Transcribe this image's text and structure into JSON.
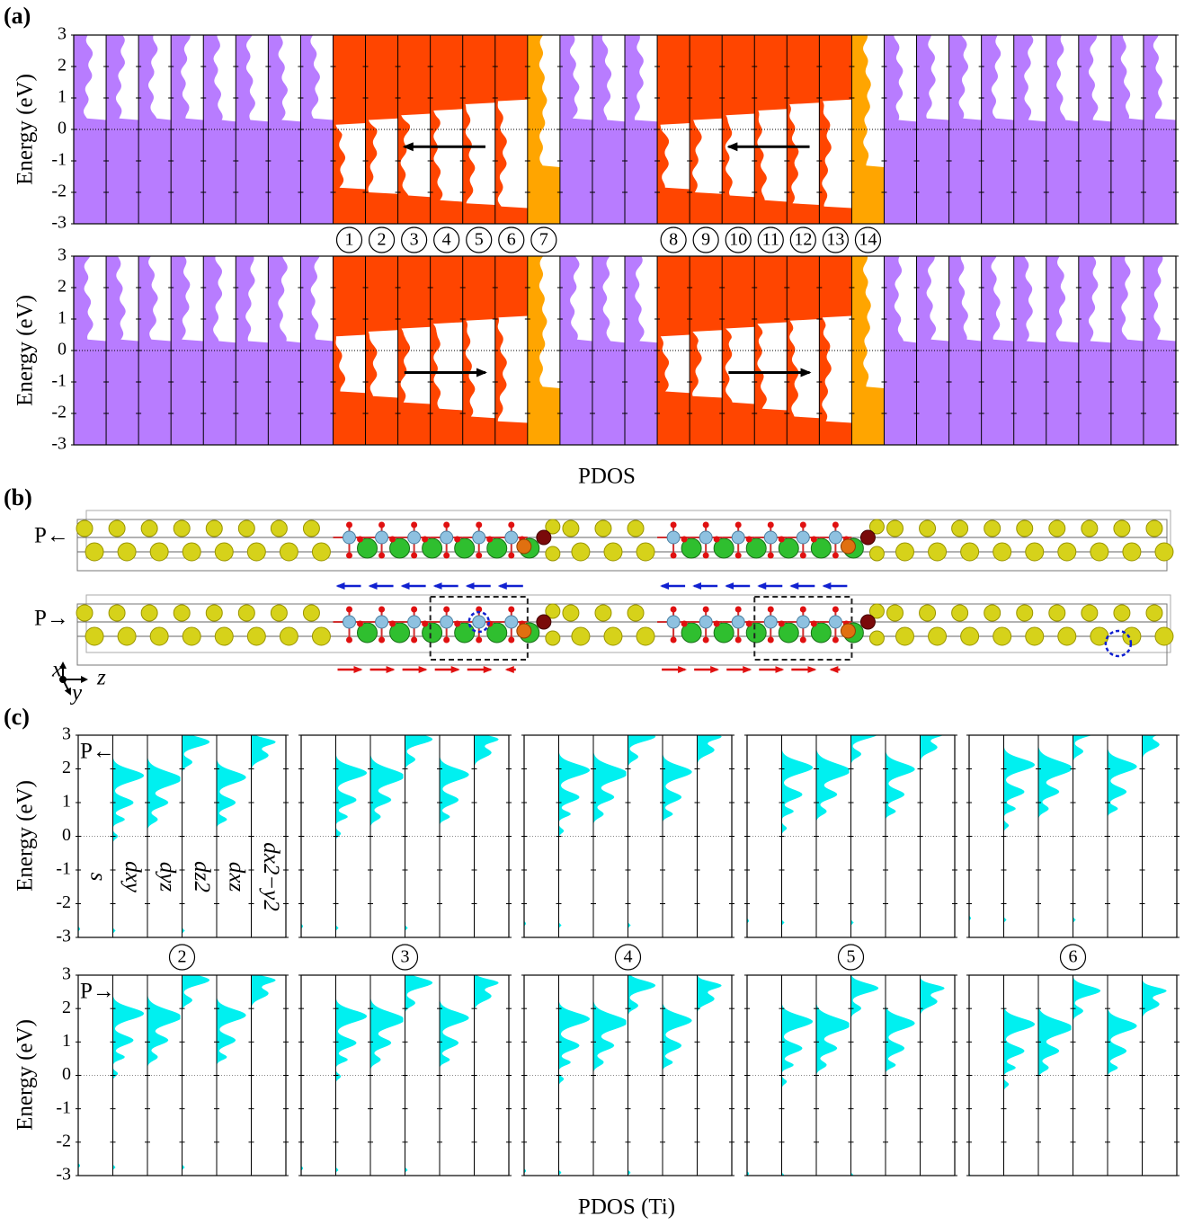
{
  "panel_a": {
    "label": "(a)",
    "ylabel": "Energy (eV)",
    "xlabel": "PDOS",
    "ylim": [
      -3,
      3
    ],
    "yticks": [
      -3,
      -2,
      -1,
      0,
      1,
      2,
      3
    ],
    "reference_line": 0,
    "column_colors": [
      "#b87cff",
      "#b87cff",
      "#b87cff",
      "#b87cff",
      "#b87cff",
      "#b87cff",
      "#b87cff",
      "#b87cff",
      "#ff4500",
      "#ff4500",
      "#ff4500",
      "#ff4500",
      "#ff4500",
      "#ff4500",
      "#ffa500",
      "#b87cff",
      "#b87cff",
      "#b87cff",
      "#ff4500",
      "#ff4500",
      "#ff4500",
      "#ff4500",
      "#ff4500",
      "#ff4500",
      "#ffa500",
      "#b87cff",
      "#b87cff",
      "#b87cff",
      "#b87cff",
      "#b87cff",
      "#b87cff",
      "#b87cff",
      "#b87cff",
      "#b87cff"
    ],
    "sites": [
      "1",
      "2",
      "3",
      "4",
      "5",
      "6",
      "7",
      "8",
      "9",
      "10",
      "11",
      "12",
      "13",
      "14"
    ]
  },
  "panel_b": {
    "label": "(b)",
    "states": [
      "P←",
      "P→"
    ],
    "axes": [
      "x",
      "z",
      "y"
    ]
  },
  "panel_c": {
    "label": "(c)",
    "ylabel": "Energy (eV)",
    "xlabel": "PDOS (Ti)",
    "ylim": [
      -3,
      3
    ],
    "yticks": [
      -3,
      -2,
      -1,
      0,
      1,
      2,
      3
    ],
    "reference_line": 0,
    "sites": [
      "2",
      "3",
      "4",
      "5",
      "6"
    ],
    "states": [
      "P←",
      "P→"
    ],
    "orbitals": [
      "s",
      "dxy",
      "dyz",
      "dz2",
      "dxz",
      "dx2−y2"
    ],
    "color": "#00f0f0"
  }
}
